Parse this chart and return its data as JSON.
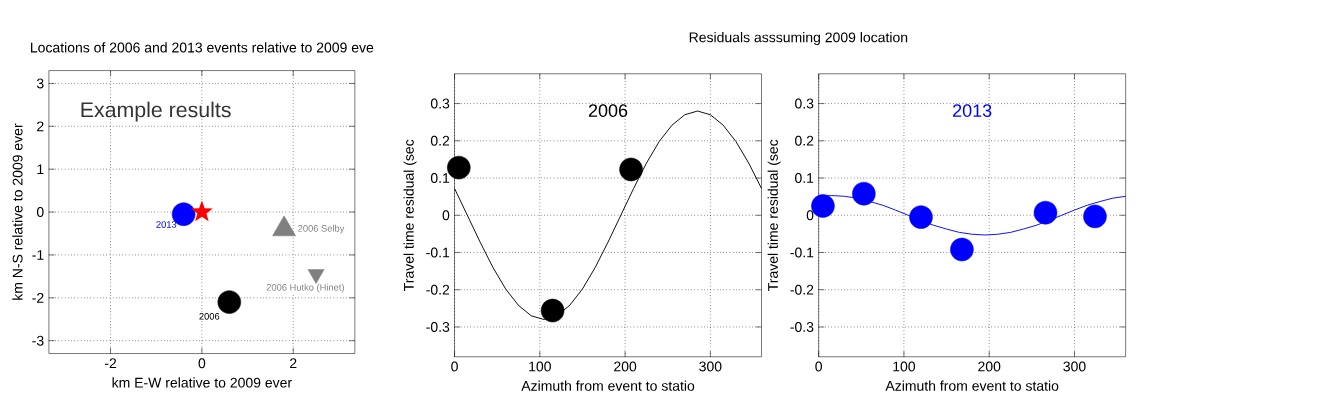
{
  "chart_data": [
    {
      "type": "scatter",
      "title": "Locations of 2006 and 2013 events relative to 2009 eve",
      "xlabel": "km E-W relative to 2009 ever",
      "ylabel": "km N-S relative to 2009 ever",
      "annotations": [
        "Example results"
      ],
      "series": [
        {
          "name": "2013",
          "color": "#0000ff",
          "marker": "circle",
          "x": [
            -0.4
          ],
          "values": [
            -0.05
          ]
        },
        {
          "color": "#ff0000",
          "marker": "star",
          "x": [
            0
          ],
          "values": [
            0
          ]
        },
        {
          "name": "2006 Selby",
          "color": "#808080",
          "marker": "triangle",
          "x": [
            1.8
          ],
          "values": [
            -0.4
          ]
        },
        {
          "name": "2006 Hutko (Hinet)",
          "color": "#808080",
          "marker": "triangle-down",
          "x": [
            2.5
          ],
          "values": [
            -1.45
          ]
        },
        {
          "name": "2006",
          "color": "#000000",
          "marker": "circle",
          "x": [
            0.6
          ],
          "values": [
            -2.1
          ]
        }
      ],
      "xlim": [
        -3.35,
        3.35
      ],
      "ylim": [
        -3.3,
        3.3
      ],
      "xticks": [
        -2,
        0,
        2
      ],
      "yticks": [
        -3,
        -2,
        -1,
        0,
        1,
        2,
        3
      ],
      "grid": true
    },
    {
      "type": "scatter",
      "title": "Residuals asssuming 2009 location",
      "xlabel": "Azimuth from event to statio",
      "ylabel": "Travel time residual (sec",
      "series": [
        {
          "type": "line",
          "color": "#000000",
          "x": [
            0,
            15,
            30,
            45,
            60,
            75,
            90,
            105,
            120,
            135,
            150,
            165,
            180,
            195,
            210,
            225,
            240,
            255,
            270,
            285,
            300,
            315,
            330,
            345,
            360
          ],
          "values": [
            0.072,
            0.0,
            -0.072,
            -0.14,
            -0.198,
            -0.242,
            -0.27,
            -0.28,
            -0.27,
            -0.242,
            -0.198,
            -0.14,
            -0.072,
            0.0,
            0.072,
            0.14,
            0.198,
            0.242,
            0.27,
            0.28,
            0.27,
            0.242,
            0.198,
            0.14,
            0.072
          ]
        },
        {
          "name": "2006",
          "color": "#000000",
          "marker": "circle",
          "x": [
            5,
            115,
            207
          ],
          "values": [
            0.128,
            -0.256,
            0.123
          ]
        }
      ],
      "xlim": [
        0,
        360
      ],
      "ylim": [
        -0.38,
        0.38
      ],
      "xticks": [
        0,
        100,
        200,
        300
      ],
      "yticks": [
        -0.3,
        -0.2,
        -0.1,
        0,
        0.1,
        0.2,
        0.3
      ],
      "grid": true
    },
    {
      "type": "scatter",
      "xlabel": "Azimuth from event to statio",
      "ylabel": "Travel time residual (sec",
      "series": [
        {
          "type": "line",
          "color": "#0000ff",
          "x": [
            0,
            15,
            30,
            45,
            60,
            75,
            90,
            105,
            120,
            135,
            150,
            165,
            180,
            195,
            210,
            225,
            240,
            255,
            270,
            285,
            300,
            315,
            330,
            345,
            360
          ],
          "values": [
            0.051,
            0.053,
            0.051,
            0.046,
            0.037,
            0.027,
            0.014,
            0.0,
            -0.014,
            -0.027,
            -0.037,
            -0.046,
            -0.051,
            -0.053,
            -0.051,
            -0.046,
            -0.037,
            -0.027,
            -0.014,
            0.0,
            0.014,
            0.027,
            0.037,
            0.046,
            0.051
          ]
        },
        {
          "name": "2013",
          "color": "#0000ff",
          "marker": "circle",
          "x": [
            5,
            53,
            120,
            168,
            266,
            324
          ],
          "values": [
            0.025,
            0.058,
            -0.005,
            -0.092,
            0.007,
            -0.003
          ]
        }
      ],
      "xlim": [
        0,
        360
      ],
      "ylim": [
        -0.38,
        0.38
      ],
      "xticks": [
        0,
        100,
        200,
        300
      ],
      "yticks": [
        -0.3,
        -0.2,
        -0.1,
        0,
        0.1,
        0.2,
        0.3
      ],
      "grid": true
    }
  ]
}
